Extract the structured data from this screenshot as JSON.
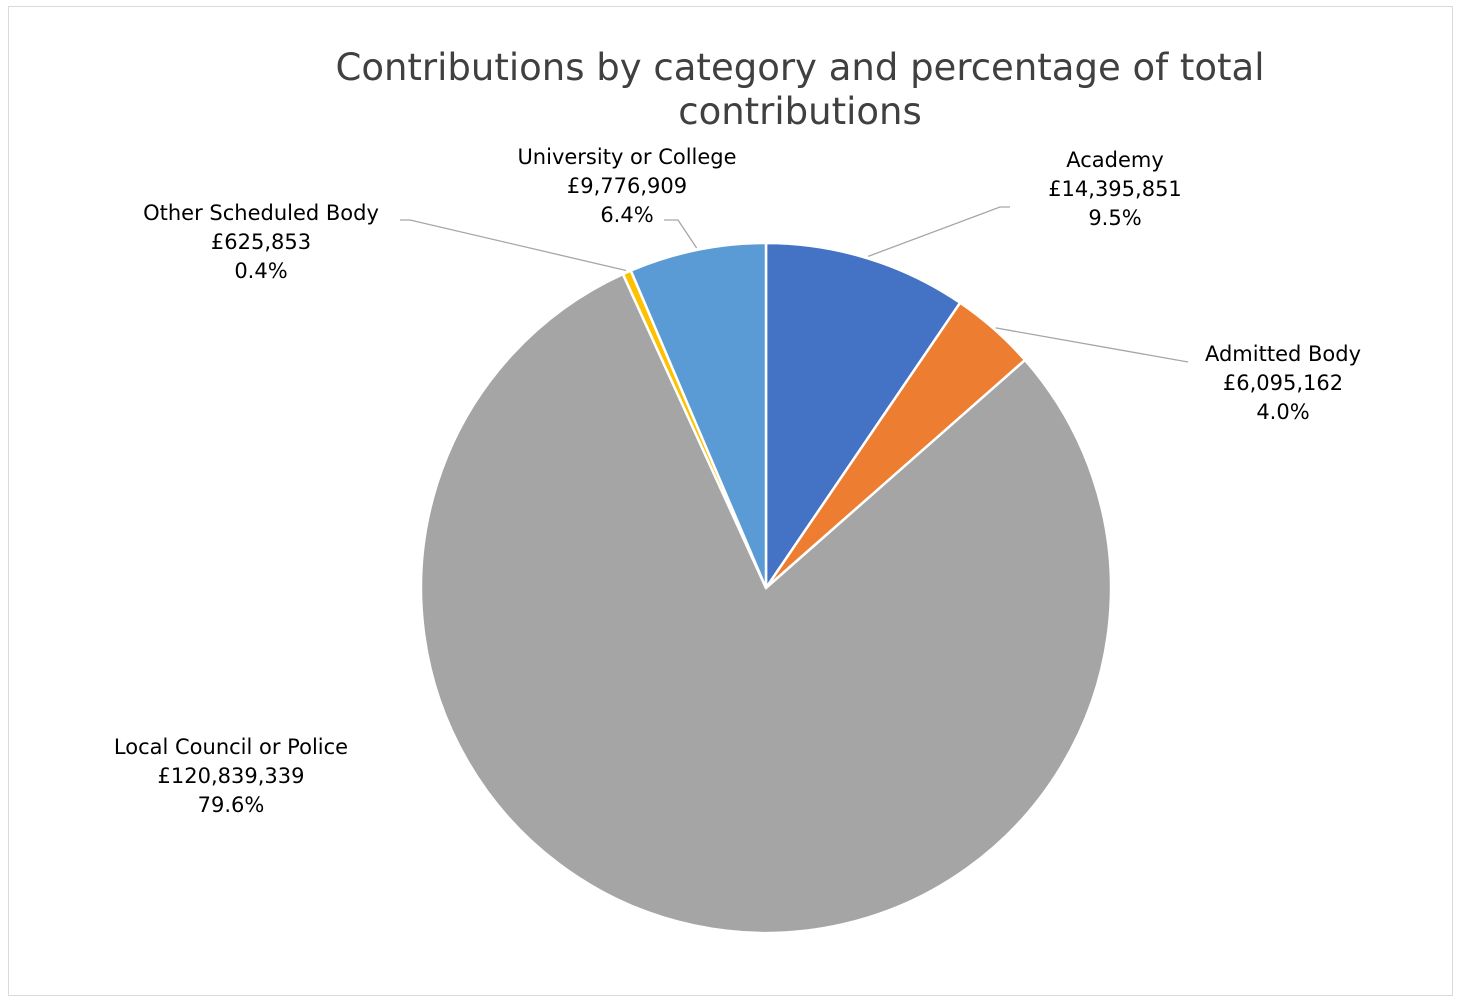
{
  "chart_data": {
    "type": "pie",
    "title_lines": [
      "Contributions by category and percentage of total",
      "contributions"
    ],
    "slices": [
      {
        "name": "Academy",
        "amount": "£14,395,851",
        "percent": "9.5%",
        "value": 9.5,
        "color": "#4472C4"
      },
      {
        "name": "Admitted Body",
        "amount": "£6,095,162",
        "percent": "4.0%",
        "value": 4.0,
        "color": "#ED7D31"
      },
      {
        "name": "Local Council or Police",
        "amount": "£120,839,339",
        "percent": "79.6%",
        "value": 79.6,
        "color": "#A5A5A5"
      },
      {
        "name": "Other Scheduled Body",
        "amount": "£625,853",
        "percent": "0.4%",
        "value": 0.4,
        "color": "#FFC000"
      },
      {
        "name": "University or College",
        "amount": "£9,776,909",
        "percent": "6.4%",
        "value": 6.4,
        "color": "#5B9BD5"
      }
    ],
    "start_angle_deg": 0,
    "direction": "clockwise",
    "legend": "none",
    "data_labels": "outside with leader lines"
  }
}
